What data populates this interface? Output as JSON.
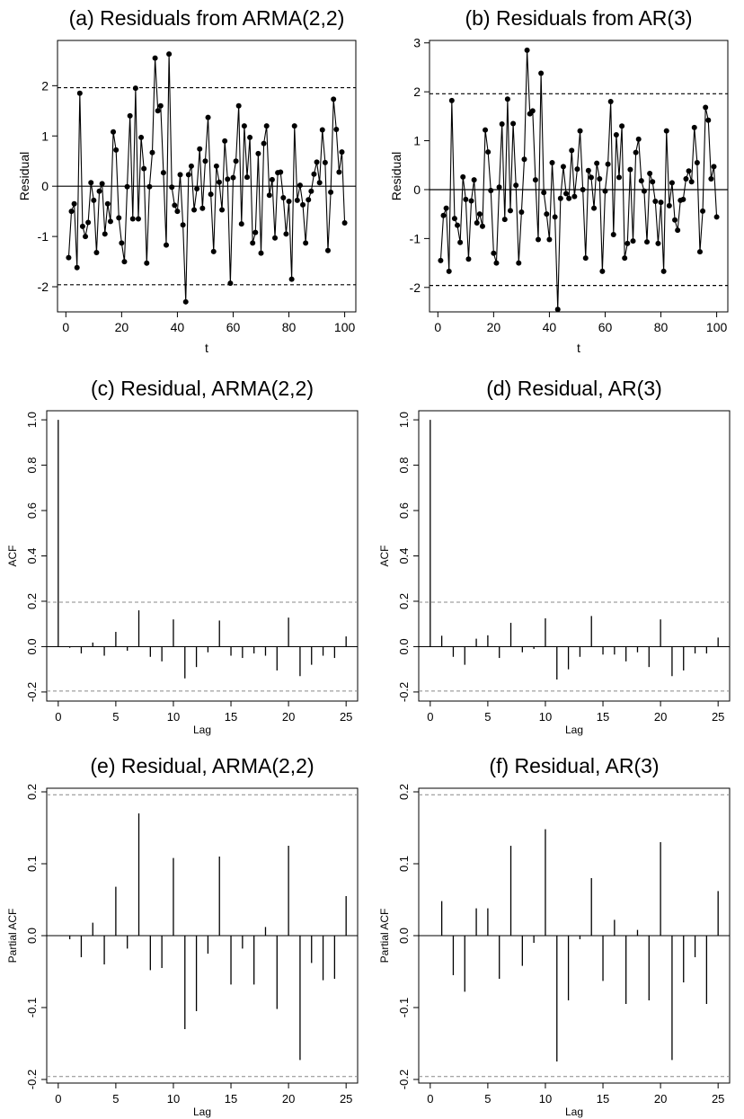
{
  "figure": {
    "background": "#ffffff",
    "ink": "#000000",
    "ci_line_color": "#888888"
  },
  "chart_data": [
    {
      "id": "a",
      "type": "line",
      "title": "(a) Residuals from ARMA(2,2)",
      "xlabel": "t",
      "ylabel": "Residual",
      "xlim": [
        -3,
        104
      ],
      "ylim": [
        -2.5,
        2.9
      ],
      "xticks": [
        "0",
        "20",
        "40",
        "60",
        "80",
        "100"
      ],
      "xtick_values": [
        0,
        20,
        40,
        60,
        80,
        100
      ],
      "yticks": [
        "-2",
        "-1",
        "0",
        "1",
        "2"
      ],
      "ytick_values": [
        -2,
        -1,
        0,
        1,
        2
      ],
      "hlines": [
        {
          "y": 0,
          "style": "solid"
        },
        {
          "y": 1.96,
          "style": "dashed"
        },
        {
          "y": -1.96,
          "style": "dashed"
        }
      ],
      "series": [
        {
          "marker": "point",
          "x": [
            1,
            2,
            3,
            4,
            5,
            6,
            7,
            8,
            9,
            10,
            11,
            12,
            13,
            14,
            15,
            16,
            17,
            18,
            19,
            20,
            21,
            22,
            23,
            24,
            25,
            26,
            27,
            28,
            29,
            30,
            31,
            32,
            33,
            34,
            35,
            36,
            37,
            38,
            39,
            40,
            41,
            42,
            43,
            44,
            45,
            46,
            47,
            48,
            49,
            50,
            51,
            52,
            53,
            54,
            55,
            56,
            57,
            58,
            59,
            60,
            61,
            62,
            63,
            64,
            65,
            66,
            67,
            68,
            69,
            70,
            71,
            72,
            73,
            74,
            75,
            76,
            77,
            78,
            79,
            80,
            81,
            82,
            83,
            84,
            85,
            86,
            87,
            88,
            89,
            90,
            91,
            92,
            93,
            94,
            95,
            96,
            97,
            98,
            99,
            100
          ],
          "values": [
            -1.42,
            -0.5,
            -0.35,
            -1.62,
            1.85,
            -0.8,
            -1.0,
            -0.72,
            0.07,
            -0.28,
            -1.32,
            -0.1,
            0.05,
            -0.95,
            -0.35,
            -0.7,
            1.08,
            0.72,
            -0.63,
            -1.13,
            -1.5,
            -0.01,
            1.4,
            -0.65,
            1.95,
            -0.65,
            0.97,
            0.35,
            -1.53,
            -0.01,
            0.67,
            2.55,
            1.5,
            1.6,
            0.27,
            -1.17,
            2.63,
            -0.02,
            -0.38,
            -0.5,
            0.23,
            -0.77,
            -2.3,
            0.23,
            0.4,
            -0.47,
            -0.05,
            0.74,
            -0.44,
            0.5,
            1.37,
            -0.16,
            -1.3,
            0.4,
            0.08,
            -0.47,
            0.9,
            0.14,
            -1.93,
            0.17,
            0.5,
            1.6,
            -0.75,
            1.2,
            0.18,
            0.97,
            -1.13,
            -0.92,
            0.65,
            -1.33,
            0.85,
            1.2,
            -0.18,
            0.13,
            -1.03,
            0.27,
            0.28,
            -0.23,
            -0.95,
            -0.3,
            -1.85,
            1.2,
            -0.28,
            0.02,
            -0.37,
            -1.13,
            -0.27,
            -0.1,
            0.24,
            0.48,
            0.07,
            1.12,
            0.47,
            -1.28,
            -0.12,
            1.73,
            1.13,
            0.28,
            0.68,
            -0.73
          ]
        }
      ]
    },
    {
      "id": "b",
      "type": "line",
      "title": "(b) Residuals from AR(3)",
      "xlabel": "t",
      "ylabel": "Residual",
      "xlim": [
        -3,
        104
      ],
      "ylim": [
        -2.5,
        3.05
      ],
      "xticks": [
        "0",
        "20",
        "40",
        "60",
        "80",
        "100"
      ],
      "xtick_values": [
        0,
        20,
        40,
        60,
        80,
        100
      ],
      "yticks": [
        "-2",
        "-1",
        "0",
        "1",
        "2",
        "3"
      ],
      "ytick_values": [
        -2,
        -1,
        0,
        1,
        2,
        3
      ],
      "hlines": [
        {
          "y": 0,
          "style": "solid"
        },
        {
          "y": 1.96,
          "style": "dashed"
        },
        {
          "y": -1.96,
          "style": "dashed"
        }
      ],
      "series": [
        {
          "marker": "point",
          "x": [
            1,
            2,
            3,
            4,
            5,
            6,
            7,
            8,
            9,
            10,
            11,
            12,
            13,
            14,
            15,
            16,
            17,
            18,
            19,
            20,
            21,
            22,
            23,
            24,
            25,
            26,
            27,
            28,
            29,
            30,
            31,
            32,
            33,
            34,
            35,
            36,
            37,
            38,
            39,
            40,
            41,
            42,
            43,
            44,
            45,
            46,
            47,
            48,
            49,
            50,
            51,
            52,
            53,
            54,
            55,
            56,
            57,
            58,
            59,
            60,
            61,
            62,
            63,
            64,
            65,
            66,
            67,
            68,
            69,
            70,
            71,
            72,
            73,
            74,
            75,
            76,
            77,
            78,
            79,
            80,
            81,
            82,
            83,
            84,
            85,
            86,
            87,
            88,
            89,
            90,
            91,
            92,
            93,
            94,
            95,
            96,
            97,
            98,
            99,
            100
          ],
          "values": [
            -1.45,
            -0.53,
            -0.38,
            -1.67,
            1.82,
            -0.59,
            -0.73,
            -1.08,
            0.26,
            -0.2,
            -1.42,
            -0.23,
            0.2,
            -0.68,
            -0.5,
            -0.75,
            1.22,
            0.77,
            -0.02,
            -1.3,
            -1.5,
            0.05,
            1.34,
            -0.61,
            1.85,
            -0.43,
            1.35,
            0.09,
            -1.5,
            -0.46,
            0.62,
            2.85,
            1.55,
            1.61,
            0.2,
            -1.02,
            2.38,
            -0.06,
            -0.5,
            -1.02,
            0.55,
            -0.56,
            -2.45,
            -0.18,
            0.47,
            -0.08,
            -0.18,
            0.8,
            -0.14,
            0.42,
            1.2,
            0.0,
            -1.4,
            0.39,
            0.25,
            -0.38,
            0.54,
            0.22,
            -1.67,
            -0.03,
            0.52,
            1.8,
            -0.92,
            1.12,
            0.25,
            1.3,
            -1.4,
            -1.1,
            0.41,
            -1.05,
            0.76,
            1.03,
            0.18,
            -0.03,
            -1.07,
            0.33,
            0.16,
            -0.24,
            -1.1,
            -0.26,
            -1.67,
            1.2,
            -0.33,
            0.14,
            -0.62,
            -0.83,
            -0.22,
            -0.2,
            0.22,
            0.38,
            0.16,
            1.27,
            0.55,
            -1.27,
            -0.44,
            1.68,
            1.42,
            0.22,
            0.47,
            -0.56
          ]
        }
      ]
    },
    {
      "id": "c",
      "type": "bar",
      "title": "(c) Residual, ARMA(2,2)",
      "xlabel": "Lag",
      "ylabel": "ACF",
      "xlim": [
        -1,
        26
      ],
      "ylim": [
        -0.24,
        1.04
      ],
      "xticks": [
        "0",
        "5",
        "10",
        "15",
        "20",
        "25"
      ],
      "xtick_values": [
        0,
        5,
        10,
        15,
        20,
        25
      ],
      "yticks": [
        "-0.2",
        "0.0",
        "0.2",
        "0.4",
        "0.6",
        "0.8",
        "1.0"
      ],
      "ytick_values": [
        -0.2,
        0,
        0.2,
        0.4,
        0.6,
        0.8,
        1.0
      ],
      "ci": 0.196,
      "x": [
        0,
        1,
        2,
        3,
        4,
        5,
        6,
        7,
        8,
        9,
        10,
        11,
        12,
        13,
        14,
        15,
        16,
        17,
        18,
        19,
        20,
        21,
        22,
        23,
        24,
        25
      ],
      "values": [
        1.0,
        -0.005,
        -0.03,
        0.018,
        -0.04,
        0.065,
        -0.018,
        0.16,
        -0.045,
        -0.065,
        0.12,
        -0.14,
        -0.09,
        -0.025,
        0.115,
        -0.04,
        -0.05,
        -0.03,
        -0.04,
        -0.105,
        0.128,
        -0.13,
        -0.08,
        -0.04,
        -0.05,
        0.045
      ]
    },
    {
      "id": "d",
      "type": "bar",
      "title": "(d) Residual, AR(3)",
      "xlabel": "Lag",
      "ylabel": "ACF",
      "xlim": [
        -1,
        26
      ],
      "ylim": [
        -0.24,
        1.04
      ],
      "xticks": [
        "0",
        "5",
        "10",
        "15",
        "20",
        "25"
      ],
      "xtick_values": [
        0,
        5,
        10,
        15,
        20,
        25
      ],
      "yticks": [
        "-0.2",
        "0.0",
        "0.2",
        "0.4",
        "0.6",
        "0.8",
        "1.0"
      ],
      "ytick_values": [
        -0.2,
        0,
        0.2,
        0.4,
        0.6,
        0.8,
        1.0
      ],
      "ci": 0.196,
      "x": [
        0,
        1,
        2,
        3,
        4,
        5,
        6,
        7,
        8,
        9,
        10,
        11,
        12,
        13,
        14,
        15,
        16,
        17,
        18,
        19,
        20,
        21,
        22,
        23,
        24,
        25
      ],
      "values": [
        1.0,
        0.048,
        -0.045,
        -0.08,
        0.035,
        0.05,
        -0.05,
        0.105,
        -0.025,
        -0.01,
        0.125,
        -0.145,
        -0.1,
        -0.045,
        0.135,
        -0.035,
        -0.035,
        -0.065,
        -0.025,
        -0.09,
        0.12,
        -0.13,
        -0.105,
        -0.03,
        -0.03,
        0.04
      ]
    },
    {
      "id": "e",
      "type": "bar",
      "title": "(e) Residual, ARMA(2,2)",
      "xlabel": "Lag",
      "ylabel": "Partial ACF",
      "xlim": [
        -1,
        26
      ],
      "ylim": [
        -0.205,
        0.205
      ],
      "xticks": [
        "0",
        "5",
        "10",
        "15",
        "20",
        "25"
      ],
      "xtick_values": [
        0,
        5,
        10,
        15,
        20,
        25
      ],
      "yticks": [
        "-0.2",
        "-0.1",
        "0.0",
        "0.1",
        "0.2"
      ],
      "ytick_values": [
        -0.2,
        -0.1,
        0,
        0.1,
        0.2
      ],
      "ci": 0.196,
      "x": [
        1,
        2,
        3,
        4,
        5,
        6,
        7,
        8,
        9,
        10,
        11,
        12,
        13,
        14,
        15,
        16,
        17,
        18,
        19,
        20,
        21,
        22,
        23,
        24,
        25
      ],
      "values": [
        -0.005,
        -0.03,
        0.018,
        -0.04,
        0.068,
        -0.018,
        0.17,
        -0.048,
        -0.045,
        0.108,
        -0.13,
        -0.105,
        -0.025,
        0.11,
        -0.068,
        -0.018,
        -0.068,
        0.012,
        -0.102,
        0.125,
        -0.173,
        -0.038,
        -0.062,
        -0.06,
        0.055
      ]
    },
    {
      "id": "f",
      "type": "bar",
      "title": "(f) Residual, AR(3)",
      "xlabel": "Lag",
      "ylabel": "Partial ACF",
      "xlim": [
        -1,
        26
      ],
      "ylim": [
        -0.205,
        0.205
      ],
      "xticks": [
        "0",
        "5",
        "10",
        "15",
        "20",
        "25"
      ],
      "xtick_values": [
        0,
        5,
        10,
        15,
        20,
        25
      ],
      "yticks": [
        "-0.2",
        "-0.1",
        "0.0",
        "0.1",
        "0.2"
      ],
      "ytick_values": [
        -0.2,
        -0.1,
        0,
        0.1,
        0.2
      ],
      "ci": 0.196,
      "x": [
        1,
        2,
        3,
        4,
        5,
        6,
        7,
        8,
        9,
        10,
        11,
        12,
        13,
        14,
        15,
        16,
        17,
        18,
        19,
        20,
        21,
        22,
        23,
        24,
        25
      ],
      "values": [
        0.048,
        -0.055,
        -0.078,
        0.038,
        0.038,
        -0.06,
        0.125,
        -0.042,
        -0.01,
        0.148,
        -0.175,
        -0.09,
        -0.005,
        0.08,
        -0.063,
        0.022,
        -0.095,
        0.008,
        -0.09,
        0.13,
        -0.173,
        -0.065,
        -0.03,
        -0.095,
        0.062
      ]
    }
  ]
}
